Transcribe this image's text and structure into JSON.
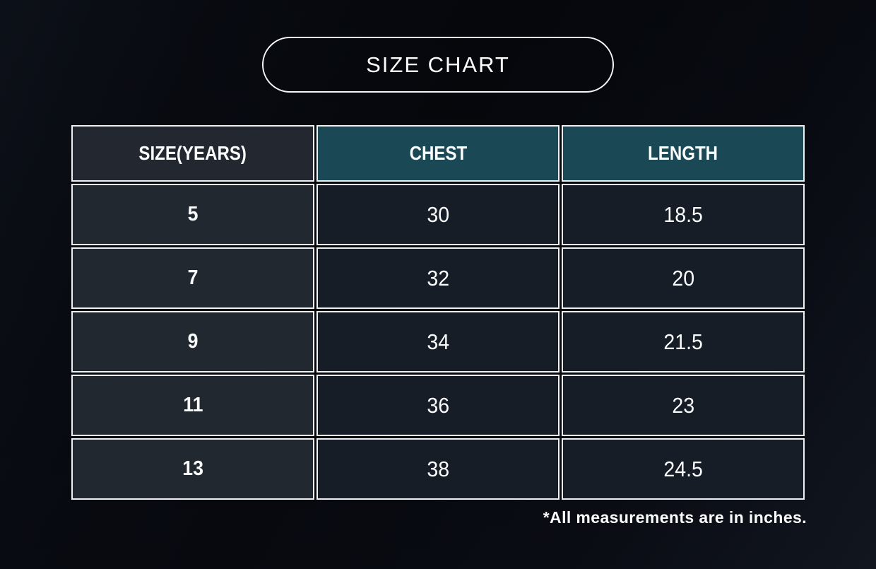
{
  "page": {
    "title": "SIZE CHART",
    "footnote": "*All measurements are in inches."
  },
  "chart_data": {
    "type": "table",
    "title": "SIZE CHART",
    "columns": [
      "SIZE(YEARS)",
      "CHEST",
      "LENGTH"
    ],
    "rows": [
      [
        "5",
        "30",
        "18.5"
      ],
      [
        "7",
        "32",
        "20"
      ],
      [
        "9",
        "34",
        "21.5"
      ],
      [
        "11",
        "36",
        "23"
      ],
      [
        "13",
        "38",
        "24.5"
      ]
    ],
    "units_note": "*All measurements are in inches."
  },
  "colors": {
    "background": "#05070c",
    "teal_header_bg": "#1a4854",
    "size_column_bg": "#232830",
    "data_cell_bg": "#171d27",
    "cell_border": "#eef0f1",
    "text": "#ffffff"
  }
}
